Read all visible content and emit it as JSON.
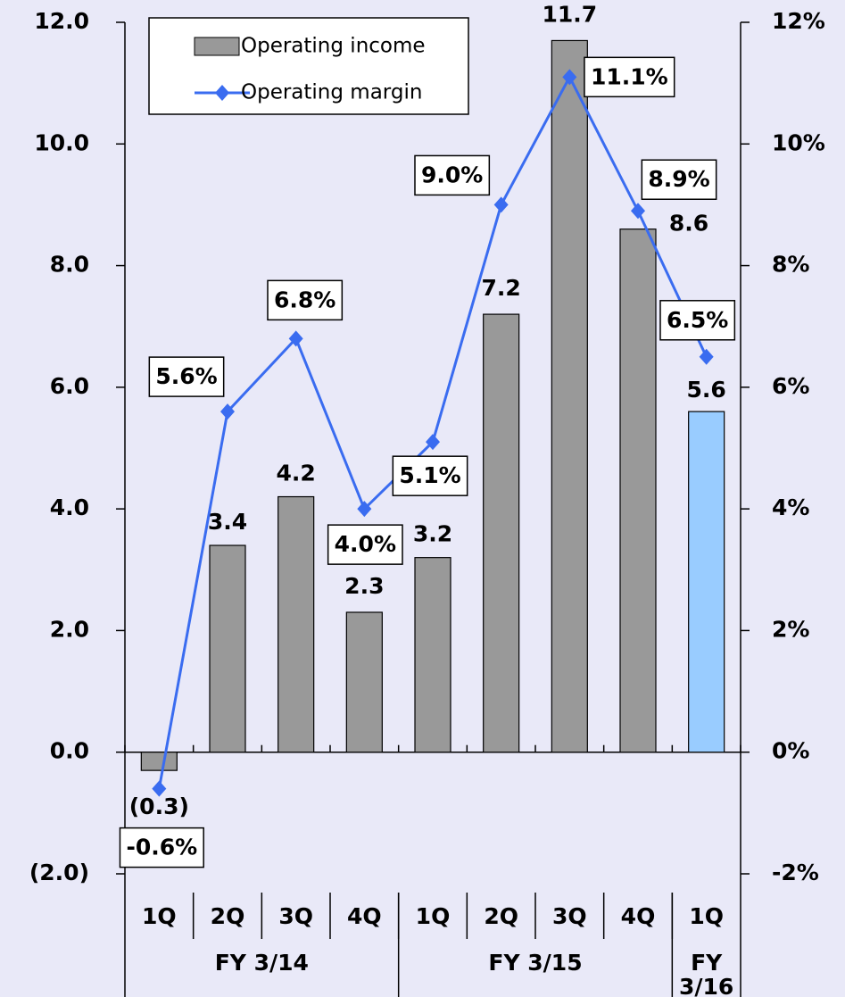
{
  "chart_data": {
    "type": "bar_line",
    "categories": [
      "1Q",
      "2Q",
      "3Q",
      "4Q",
      "1Q",
      "2Q",
      "3Q",
      "4Q",
      "1Q"
    ],
    "groups": [
      {
        "label": "FY 3/14",
        "span": 4
      },
      {
        "label": "FY 3/15",
        "span": 4
      },
      {
        "label": "FY 3/16",
        "span": 1
      }
    ],
    "series": [
      {
        "name": "Operating income",
        "type": "bar",
        "color": "#999999",
        "colors": [
          "#999999",
          "#999999",
          "#999999",
          "#999999",
          "#999999",
          "#999999",
          "#999999",
          "#999999",
          "#99ccff"
        ],
        "values": [
          -0.3,
          3.4,
          4.2,
          2.3,
          3.2,
          7.2,
          11.7,
          8.6,
          5.6
        ],
        "value_labels": [
          "(0.3)",
          "3.4",
          "4.2",
          "2.3",
          "3.2",
          "7.2",
          "11.7",
          "8.6",
          "5.6"
        ]
      },
      {
        "name": "Operating margin",
        "type": "line",
        "color": "#3a6cf0",
        "axis": "y2",
        "values": [
          -0.6,
          5.6,
          6.8,
          4.0,
          5.1,
          9.0,
          11.1,
          8.9,
          6.5
        ],
        "value_labels": [
          "-0.6%",
          "5.6%",
          "6.8%",
          "4.0%",
          "5.1%",
          "9.0%",
          "11.1%",
          "8.9%",
          "6.5%"
        ]
      }
    ],
    "ylim": [
      -2,
      12
    ],
    "yticks": [
      {
        "value": -2,
        "label": "(2.0)"
      },
      {
        "value": 0,
        "label": "0.0"
      },
      {
        "value": 2,
        "label": "2.0"
      },
      {
        "value": 4,
        "label": "4.0"
      },
      {
        "value": 6,
        "label": "6.0"
      },
      {
        "value": 8,
        "label": "8.0"
      },
      {
        "value": 10,
        "label": "10.0"
      },
      {
        "value": 12,
        "label": "12.0"
      }
    ],
    "y2lim": [
      -2,
      12
    ],
    "y2ticks": [
      {
        "value": -2,
        "label": "-2%"
      },
      {
        "value": 0,
        "label": "0%"
      },
      {
        "value": 2,
        "label": "2%"
      },
      {
        "value": 4,
        "label": "4%"
      },
      {
        "value": 6,
        "label": "6%"
      },
      {
        "value": 8,
        "label": "8%"
      },
      {
        "value": 10,
        "label": "10%"
      },
      {
        "value": 12,
        "label": "12%"
      }
    ],
    "negative_color": "#ff0000",
    "legend": "top-left"
  }
}
